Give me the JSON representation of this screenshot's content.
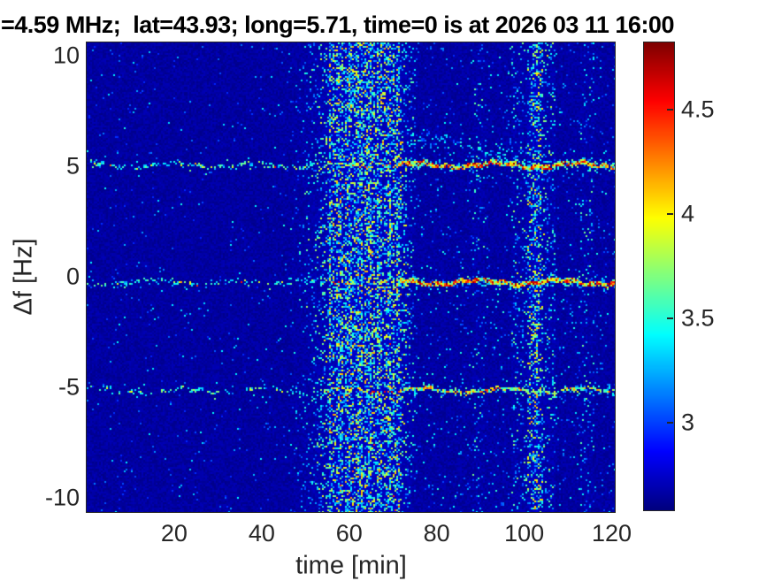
{
  "figure": {
    "background_color": "#ffffff",
    "text_color": "#262626",
    "title_color": "#000000"
  },
  "chart_data": {
    "type": "heatmap",
    "title": "=4.59 MHz;  lat=43.93; long=5.71, time=0 is at 2026 03 11 16:00",
    "xlabel": "time [min]",
    "ylabel": "Δf [Hz]",
    "xlim": [
      0,
      120.7
    ],
    "ylim": [
      -10.64,
      10.6
    ],
    "xticks": [
      20,
      40,
      60,
      80,
      100,
      120
    ],
    "yticks": [
      10,
      5,
      0,
      -5,
      -10
    ],
    "grid": false,
    "colormap": "jet",
    "clim": [
      2.58,
      4.82
    ],
    "colorbar_ticks": [
      3,
      3.5,
      4,
      4.5
    ],
    "colorbar_position": "right",
    "background_value_range": [
      2.6,
      2.7
    ],
    "seed": 1337,
    "base_speckle_density": {
      "before_band": 0.014,
      "ramp_region": 0.02,
      "after_band": 0.035
    },
    "band_window_min": [
      55.5,
      71.5
    ],
    "horizontal_lines": [
      {
        "name": "upper-doppler-trace",
        "freq_hz": 5.05,
        "left_density": 0.32,
        "band_density": 0.35,
        "right_density": 0.9,
        "halo_left": 0.08,
        "halo_right": 0.33,
        "hot_right": true
      },
      {
        "name": "carrier-trace",
        "freq_hz": -0.25,
        "left_density": 0.28,
        "band_density": 0.35,
        "right_density": 0.9,
        "halo_left": 0.08,
        "halo_right": 0.36,
        "hot_right": true
      },
      {
        "name": "lower-doppler-trace",
        "freq_hz": -5.15,
        "left_density": 0.22,
        "band_density": 0.3,
        "right_density": 0.62,
        "halo_left": 0.06,
        "halo_right": 0.22,
        "hot_right": false
      }
    ],
    "vertical_bands": [
      {
        "name": "pre-onset-ramp",
        "t_start": 44,
        "t_end": 55.5,
        "density": 0.2,
        "shape": "ramp-up"
      },
      {
        "name": "main-disturbance-band",
        "t_start": 55.5,
        "t_end": 71.5,
        "density": 0.46,
        "shape": "striated"
      },
      {
        "name": "decay-tail",
        "t_start": 71.5,
        "t_end": 76,
        "density": 0.22,
        "shape": "ramp-down"
      },
      {
        "name": "faint-column-89",
        "t_start": 88,
        "t_end": 91,
        "density": 0.05,
        "shape": "flat"
      },
      {
        "name": "rising-column",
        "t_start": 97,
        "t_end": 100.5,
        "density": 0.08,
        "shape": "flat"
      },
      {
        "name": "secondary-stripe",
        "t_start": 100.5,
        "t_end": 104.5,
        "density": 0.3,
        "shape": "peak",
        "peak_t": 102.6
      },
      {
        "name": "post-stripe",
        "t_start": 104.5,
        "t_end": 107,
        "density": 0.1,
        "shape": "flat"
      },
      {
        "name": "faint-column-114",
        "t_start": 113,
        "t_end": 116,
        "density": 0.06,
        "shape": "flat"
      }
    ],
    "diffuse_patch": {
      "name": "descending-diffuse-trace",
      "t_start": 72,
      "t_end": 103,
      "freq_start_hz": 6.35,
      "freq_end_hz": 5.4,
      "half_width_hz": 0.45,
      "density": 0.22
    }
  }
}
